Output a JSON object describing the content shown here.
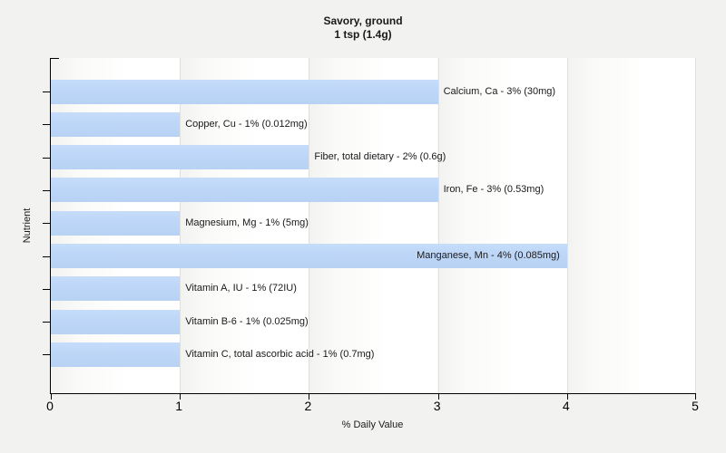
{
  "title": {
    "line1": "Savory, ground",
    "line2": "1 tsp (1.4g)"
  },
  "axes": {
    "y_label": "Nutrient",
    "x_label": "% Daily Value",
    "x_ticks": [
      "0",
      "1",
      "2",
      "3",
      "4",
      "5"
    ]
  },
  "colors": {
    "page_background": "#f2f2f0",
    "bar": "#bed7f8",
    "gridline": "#e0e0de",
    "axis": "#000000",
    "text": "#1a1a1a"
  },
  "chart_data": {
    "type": "bar",
    "orientation": "horizontal",
    "title": "Savory, ground 1 tsp (1.4g)",
    "xlabel": "% Daily Value",
    "ylabel": "Nutrient",
    "xlim": [
      0,
      5
    ],
    "grid": "vertical gridlines at each integer",
    "legend": "none",
    "categories": [
      "Calcium, Ca",
      "Copper, Cu",
      "Fiber, total dietary",
      "Iron, Fe",
      "Magnesium, Mg",
      "Manganese, Mn",
      "Vitamin A, IU",
      "Vitamin B-6",
      "Vitamin C, total ascorbic acid"
    ],
    "values": [
      3,
      1,
      2,
      3,
      1,
      4,
      1,
      1,
      1
    ],
    "amounts": [
      "30mg",
      "0.012mg",
      "0.6g",
      "0.53mg",
      "5mg",
      "0.085mg",
      "72IU",
      "0.025mg",
      "0.7mg"
    ],
    "bar_label_format": "{category} - {value}% ({amount})"
  }
}
